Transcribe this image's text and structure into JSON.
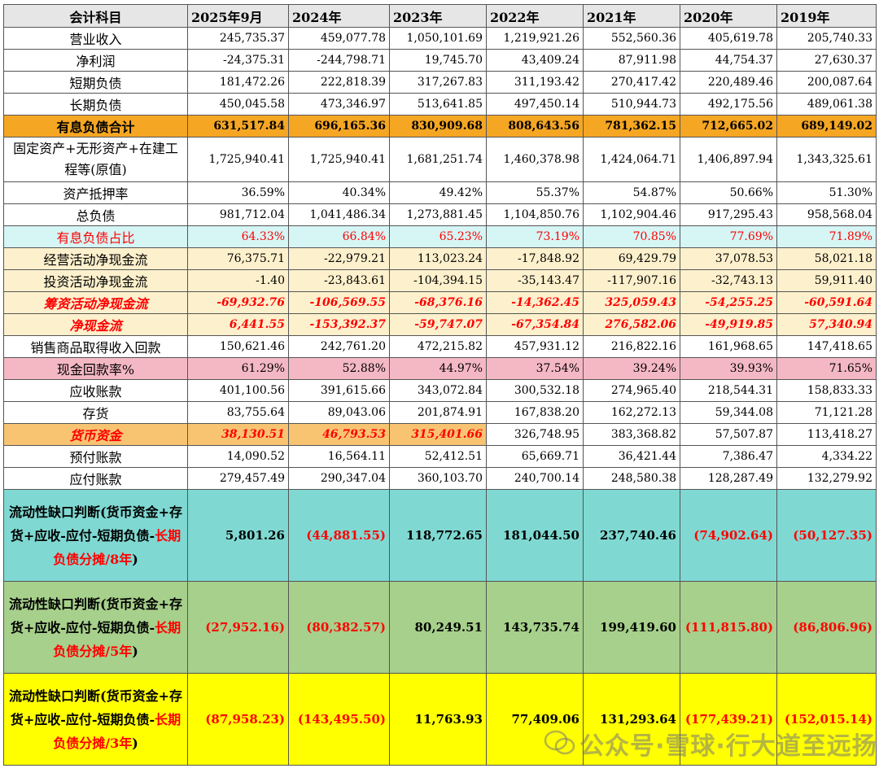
{
  "header": {
    "label": "会计科目",
    "years": [
      "2025年9月",
      "2024年",
      "2023年",
      "2022年",
      "2021年",
      "2020年",
      "2019年"
    ]
  },
  "rows": {
    "revenue": {
      "label": "营业收入",
      "values": [
        "245,735.37",
        "459,077.78",
        "1,050,101.69",
        "1,219,921.26",
        "552,560.36",
        "405,619.78",
        "205,740.33"
      ]
    },
    "net_profit": {
      "label": "净利润",
      "values": [
        "-24,375.31",
        "-244,798.71",
        "19,745.70",
        "43,409.24",
        "87,911.98",
        "44,754.37",
        "27,630.37"
      ]
    },
    "short_debt": {
      "label": "短期负债",
      "values": [
        "181,472.26",
        "222,818.39",
        "317,267.83",
        "311,193.42",
        "270,417.42",
        "220,489.46",
        "200,087.64"
      ]
    },
    "long_debt": {
      "label": "长期负债",
      "values": [
        "450,045.58",
        "473,346.97",
        "513,641.85",
        "497,450.14",
        "510,944.73",
        "492,175.56",
        "489,061.38"
      ]
    },
    "interest_debt": {
      "label": "有息负债合计",
      "values": [
        "631,517.84",
        "696,165.36",
        "830,909.68",
        "808,643.56",
        "781,362.15",
        "712,665.02",
        "689,149.02"
      ]
    },
    "fixed_assets": {
      "label": "固定资产+无形资产+在建工程等(原值)",
      "values": [
        "1,725,940.41",
        "1,725,940.41",
        "1,681,251.74",
        "1,460,378.98",
        "1,424,064.71",
        "1,406,897.94",
        "1,343,325.61"
      ]
    },
    "mortgage_rate": {
      "label": "资产抵押率",
      "values": [
        "36.59%",
        "40.34%",
        "49.42%",
        "55.37%",
        "54.87%",
        "50.66%",
        "51.30%"
      ]
    },
    "total_debt": {
      "label": "总负债",
      "values": [
        "981,712.04",
        "1,041,486.34",
        "1,273,881.45",
        "1,104,850.76",
        "1,102,904.46",
        "917,295.43",
        "958,568.04"
      ]
    },
    "interest_ratio": {
      "label": "有息负债占比",
      "values": [
        "64.33%",
        "66.84%",
        "65.23%",
        "73.19%",
        "70.85%",
        "77.69%",
        "71.89%"
      ]
    },
    "op_cash": {
      "label": "经营活动净现金流",
      "values": [
        "76,375.71",
        "-22,979.21",
        "113,023.24",
        "-17,848.92",
        "69,429.79",
        "37,078.53",
        "58,021.18"
      ]
    },
    "inv_cash": {
      "label": "投资活动净现金流",
      "values": [
        "-1.40",
        "-23,843.61",
        "-104,394.15",
        "-35,143.47",
        "-117,907.16",
        "-32,743.13",
        "59,911.40"
      ]
    },
    "fin_cash": {
      "label": "筹资活动净现金流",
      "values": [
        "-69,932.76",
        "-106,569.55",
        "-68,376.16",
        "-14,362.45",
        "325,059.43",
        "-54,255.25",
        "-60,591.64"
      ]
    },
    "net_cash": {
      "label": "净现金流",
      "values": [
        "6,441.55",
        "-153,392.37",
        "-59,747.07",
        "-67,354.84",
        "276,582.06",
        "-49,919.85",
        "57,340.94"
      ]
    },
    "sales_cash": {
      "label": "销售商品取得收入回款",
      "values": [
        "150,621.46",
        "242,761.20",
        "472,215.82",
        "457,931.12",
        "216,822.16",
        "161,968.65",
        "147,418.65"
      ]
    },
    "cash_rate": {
      "label": "现金回款率%",
      "values": [
        "61.29%",
        "52.88%",
        "44.97%",
        "37.54%",
        "39.24%",
        "39.93%",
        "71.65%"
      ]
    },
    "receivables": {
      "label": "应收账款",
      "values": [
        "401,100.56",
        "391,615.66",
        "343,072.84",
        "300,532.18",
        "274,965.40",
        "218,544.31",
        "158,833.33"
      ]
    },
    "inventory": {
      "label": "存货",
      "values": [
        "83,755.64",
        "89,043.06",
        "201,874.91",
        "167,838.20",
        "162,272.13",
        "59,344.08",
        "71,121.28"
      ]
    },
    "cash": {
      "label": "货币资金",
      "values": [
        "38,130.51",
        "46,793.53",
        "315,401.66",
        "326,748.95",
        "383,368.82",
        "57,507.87",
        "113,418.27"
      ]
    },
    "prepaid": {
      "label": "预付账款",
      "values": [
        "14,090.52",
        "16,564.11",
        "52,412.51",
        "65,669.71",
        "36,421.44",
        "7,386.47",
        "4,334.22"
      ]
    },
    "payables": {
      "label": "应付账款",
      "values": [
        "279,457.49",
        "290,347.04",
        "360,103.70",
        "240,700.14",
        "248,580.38",
        "128,287.49",
        "132,279.92"
      ]
    },
    "gap8": {
      "label_a": "流动性缺口判断(货币资金+存货+应收-应付-短期负债-",
      "label_b": "长期负债分摊/8年",
      "label_c": ")",
      "values": [
        "5,801.26",
        "(44,881.55)",
        "118,772.65",
        "181,044.50",
        "237,740.46",
        "(74,902.64)",
        "(50,127.35)"
      ]
    },
    "gap5": {
      "label_a": "流动性缺口判断(货币资金+存货+应收-应付-短期负债-",
      "label_b": "长期负债分摊/5年",
      "label_c": ")",
      "values": [
        "(27,952.16)",
        "(80,382.57)",
        "80,249.51",
        "143,735.74",
        "199,419.60",
        "(111,815.80)",
        "(86,806.96)"
      ]
    },
    "gap3": {
      "label_a": "流动性缺口判断(货币资金+存货+应收-应付-短期负债-",
      "label_b": "长期负债分摊/3年",
      "label_c": ")",
      "values": [
        "(87,958.23)",
        "(143,495.50)",
        "11,763.93",
        "77,409.06",
        "131,293.64",
        "(177,439.21)",
        "(152,015.14)"
      ]
    }
  },
  "watermark": {
    "text": "公众号·雪球·行大道至远扬"
  }
}
